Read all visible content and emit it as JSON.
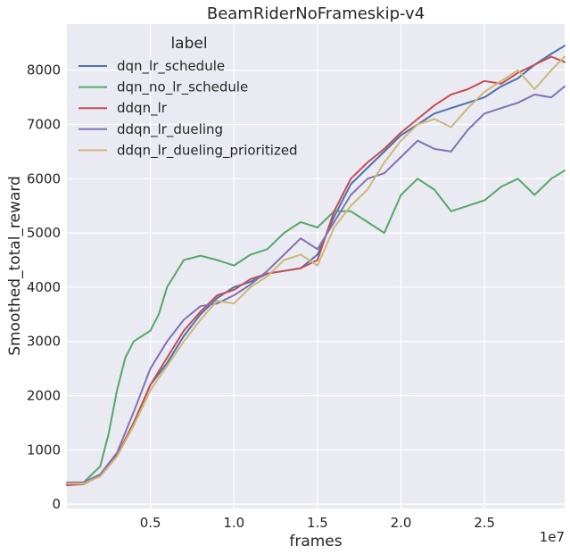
{
  "chart_data": {
    "type": "line",
    "title": "BeamRiderNoFrameskip-v4",
    "xlabel": "frames",
    "ylabel": "Smoothed_total_reward",
    "x_offset_label": "1e7",
    "xlim": [
      0,
      29800000
    ],
    "ylim": [
      -80,
      8850
    ],
    "x_ticks": [
      5000000,
      10000000,
      15000000,
      20000000,
      25000000
    ],
    "x_tick_labels": [
      "0.5",
      "1.0",
      "1.5",
      "2.0",
      "2.5"
    ],
    "y_ticks": [
      0,
      1000,
      2000,
      3000,
      4000,
      5000,
      6000,
      7000,
      8000
    ],
    "y_tick_labels": [
      "0",
      "1000",
      "2000",
      "3000",
      "4000",
      "5000",
      "6000",
      "7000",
      "8000"
    ],
    "grid": true,
    "legend": {
      "title": "label",
      "placement": "top-left"
    },
    "series": [
      {
        "name": "dqn_lr_schedule",
        "color": "#4c72b0",
        "points": [
          [
            0,
            380
          ],
          [
            1000000,
            380
          ],
          [
            2000000,
            530
          ],
          [
            3000000,
            900
          ],
          [
            4000000,
            1500
          ],
          [
            5000000,
            2200
          ],
          [
            6000000,
            2600
          ],
          [
            7000000,
            3100
          ],
          [
            8000000,
            3500
          ],
          [
            9000000,
            3800
          ],
          [
            10000000,
            4000
          ],
          [
            11000000,
            4100
          ],
          [
            12000000,
            4250
          ],
          [
            13000000,
            4300
          ],
          [
            14000000,
            4350
          ],
          [
            15000000,
            4600
          ],
          [
            16000000,
            5300
          ],
          [
            17000000,
            5900
          ],
          [
            18000000,
            6200
          ],
          [
            19000000,
            6500
          ],
          [
            20000000,
            6800
          ],
          [
            21000000,
            7000
          ],
          [
            22000000,
            7200
          ],
          [
            23000000,
            7300
          ],
          [
            24000000,
            7400
          ],
          [
            25000000,
            7500
          ],
          [
            26000000,
            7700
          ],
          [
            27000000,
            7850
          ],
          [
            28000000,
            8100
          ],
          [
            29000000,
            8300
          ],
          [
            29800000,
            8450
          ]
        ]
      },
      {
        "name": "dqn_no_lr_schedule",
        "color": "#55a868",
        "points": [
          [
            0,
            380
          ],
          [
            1000000,
            400
          ],
          [
            2000000,
            700
          ],
          [
            2500000,
            1300
          ],
          [
            3000000,
            2100
          ],
          [
            3500000,
            2700
          ],
          [
            4000000,
            3000
          ],
          [
            4500000,
            3100
          ],
          [
            5000000,
            3200
          ],
          [
            5500000,
            3500
          ],
          [
            6000000,
            4000
          ],
          [
            7000000,
            4500
          ],
          [
            8000000,
            4580
          ],
          [
            9000000,
            4500
          ],
          [
            10000000,
            4400
          ],
          [
            11000000,
            4600
          ],
          [
            12000000,
            4700
          ],
          [
            13000000,
            5000
          ],
          [
            14000000,
            5200
          ],
          [
            15000000,
            5100
          ],
          [
            16000000,
            5400
          ],
          [
            17000000,
            5400
          ],
          [
            18000000,
            5200
          ],
          [
            19000000,
            5000
          ],
          [
            20000000,
            5700
          ],
          [
            21000000,
            6000
          ],
          [
            22000000,
            5800
          ],
          [
            23000000,
            5400
          ],
          [
            24000000,
            5500
          ],
          [
            25000000,
            5600
          ],
          [
            26000000,
            5850
          ],
          [
            27000000,
            6000
          ],
          [
            28000000,
            5700
          ],
          [
            29000000,
            6000
          ],
          [
            29800000,
            6150
          ]
        ]
      },
      {
        "name": "ddqn_lr",
        "color": "#c44e52",
        "points": [
          [
            0,
            350
          ],
          [
            1000000,
            370
          ],
          [
            2000000,
            520
          ],
          [
            3000000,
            900
          ],
          [
            4000000,
            1500
          ],
          [
            5000000,
            2200
          ],
          [
            6000000,
            2700
          ],
          [
            7000000,
            3200
          ],
          [
            8000000,
            3550
          ],
          [
            9000000,
            3850
          ],
          [
            10000000,
            3950
          ],
          [
            11000000,
            4150
          ],
          [
            12000000,
            4250
          ],
          [
            13000000,
            4300
          ],
          [
            14000000,
            4350
          ],
          [
            15000000,
            4500
          ],
          [
            16000000,
            5400
          ],
          [
            17000000,
            6000
          ],
          [
            18000000,
            6300
          ],
          [
            19000000,
            6550
          ],
          [
            20000000,
            6850
          ],
          [
            21000000,
            7100
          ],
          [
            22000000,
            7350
          ],
          [
            23000000,
            7550
          ],
          [
            24000000,
            7650
          ],
          [
            25000000,
            7800
          ],
          [
            26000000,
            7750
          ],
          [
            27000000,
            7950
          ],
          [
            28000000,
            8100
          ],
          [
            29000000,
            8250
          ],
          [
            29800000,
            8150
          ]
        ]
      },
      {
        "name": "ddqn_lr_dueling",
        "color": "#8172b2",
        "points": [
          [
            0,
            400
          ],
          [
            1000000,
            400
          ],
          [
            2000000,
            550
          ],
          [
            3000000,
            950
          ],
          [
            4000000,
            1700
          ],
          [
            5000000,
            2500
          ],
          [
            6000000,
            3000
          ],
          [
            7000000,
            3400
          ],
          [
            8000000,
            3650
          ],
          [
            9000000,
            3700
          ],
          [
            10000000,
            3850
          ],
          [
            11000000,
            4050
          ],
          [
            12000000,
            4300
          ],
          [
            13000000,
            4600
          ],
          [
            14000000,
            4900
          ],
          [
            15000000,
            4700
          ],
          [
            16000000,
            5200
          ],
          [
            17000000,
            5700
          ],
          [
            18000000,
            6000
          ],
          [
            19000000,
            6100
          ],
          [
            20000000,
            6400
          ],
          [
            21000000,
            6700
          ],
          [
            22000000,
            6550
          ],
          [
            23000000,
            6500
          ],
          [
            24000000,
            6900
          ],
          [
            25000000,
            7200
          ],
          [
            26000000,
            7300
          ],
          [
            27000000,
            7400
          ],
          [
            28000000,
            7550
          ],
          [
            29000000,
            7500
          ],
          [
            29800000,
            7700
          ]
        ]
      },
      {
        "name": "ddqn_lr_dueling_prioritized",
        "color": "#ccb974",
        "points": [
          [
            0,
            380
          ],
          [
            1000000,
            380
          ],
          [
            2000000,
            510
          ],
          [
            3000000,
            880
          ],
          [
            4000000,
            1450
          ],
          [
            5000000,
            2100
          ],
          [
            6000000,
            2550
          ],
          [
            7000000,
            3000
          ],
          [
            8000000,
            3400
          ],
          [
            9000000,
            3750
          ],
          [
            10000000,
            3700
          ],
          [
            11000000,
            4000
          ],
          [
            12000000,
            4200
          ],
          [
            13000000,
            4500
          ],
          [
            14000000,
            4600
          ],
          [
            15000000,
            4400
          ],
          [
            16000000,
            5100
          ],
          [
            17000000,
            5500
          ],
          [
            18000000,
            5800
          ],
          [
            19000000,
            6300
          ],
          [
            20000000,
            6700
          ],
          [
            21000000,
            7000
          ],
          [
            22000000,
            7100
          ],
          [
            23000000,
            6950
          ],
          [
            24000000,
            7300
          ],
          [
            25000000,
            7600
          ],
          [
            26000000,
            7800
          ],
          [
            27000000,
            8000
          ],
          [
            28000000,
            7650
          ],
          [
            29000000,
            8000
          ],
          [
            29800000,
            8250
          ]
        ]
      }
    ]
  }
}
